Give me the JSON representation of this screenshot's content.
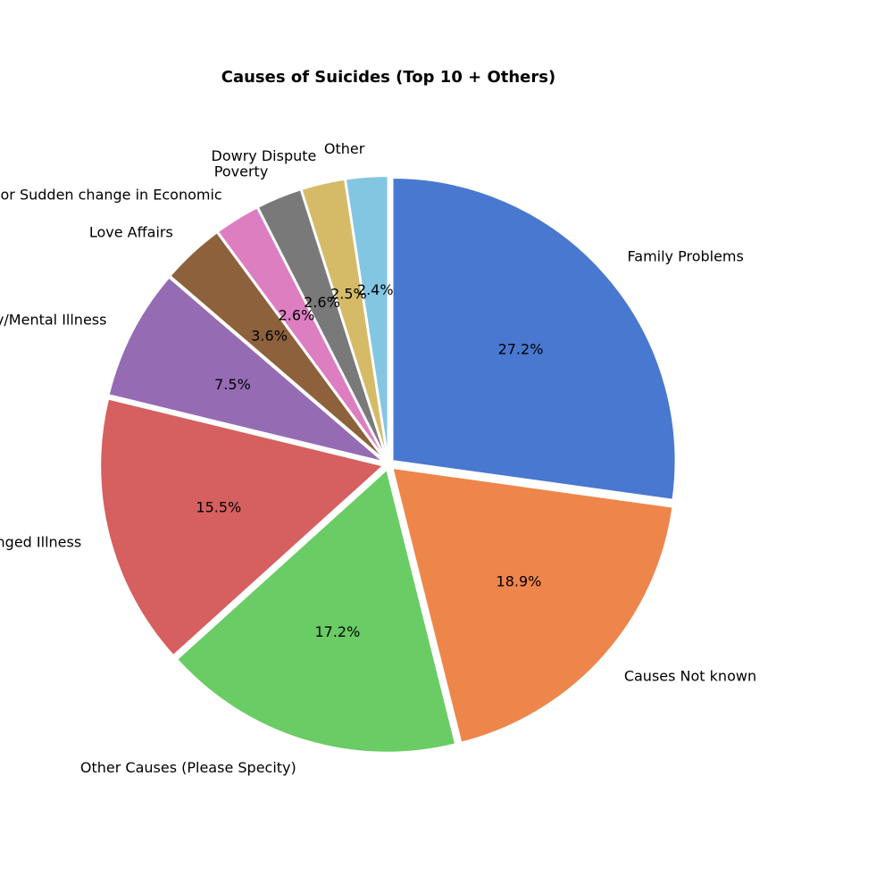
{
  "chart_data": {
    "type": "pie",
    "title": "Causes of Suicides (Top 10 + Others)",
    "start_angle_deg": 90,
    "direction": "clockwise",
    "slices": [
      {
        "label": "Family Problems",
        "value": 27.2,
        "pct_label": "27.2%",
        "color": "#4878d0"
      },
      {
        "label": "Causes Not known",
        "value": 18.9,
        "pct_label": "18.9%",
        "color": "#ee854a"
      },
      {
        "label": "Other Causes (Please Specity)",
        "value": 17.2,
        "pct_label": "17.2%",
        "color": "#6acc64"
      },
      {
        "label": "Other Prolonged Illness",
        "value": 15.5,
        "pct_label": "15.5%",
        "color": "#d65f5f"
      },
      {
        "label": "Insanity/Mental Illness",
        "value": 7.5,
        "pct_label": "7.5%",
        "color": "#956cb4"
      },
      {
        "label": "Love Affairs",
        "value": 3.6,
        "pct_label": "3.6%",
        "color": "#8c613c"
      },
      {
        "label": "Bankruptcy or Sudden change in Economic",
        "value": 2.6,
        "pct_label": "2.6%",
        "color": "#dc7ec0"
      },
      {
        "label": "Poverty",
        "value": 2.6,
        "pct_label": "2.6%",
        "color": "#797979"
      },
      {
        "label": "Dowry Dispute",
        "value": 2.5,
        "pct_label": "2.5%",
        "color": "#d5bb67"
      },
      {
        "label": "Other",
        "value": 2.4,
        "pct_label": "2.4%",
        "color": "#82c6e2"
      }
    ]
  }
}
